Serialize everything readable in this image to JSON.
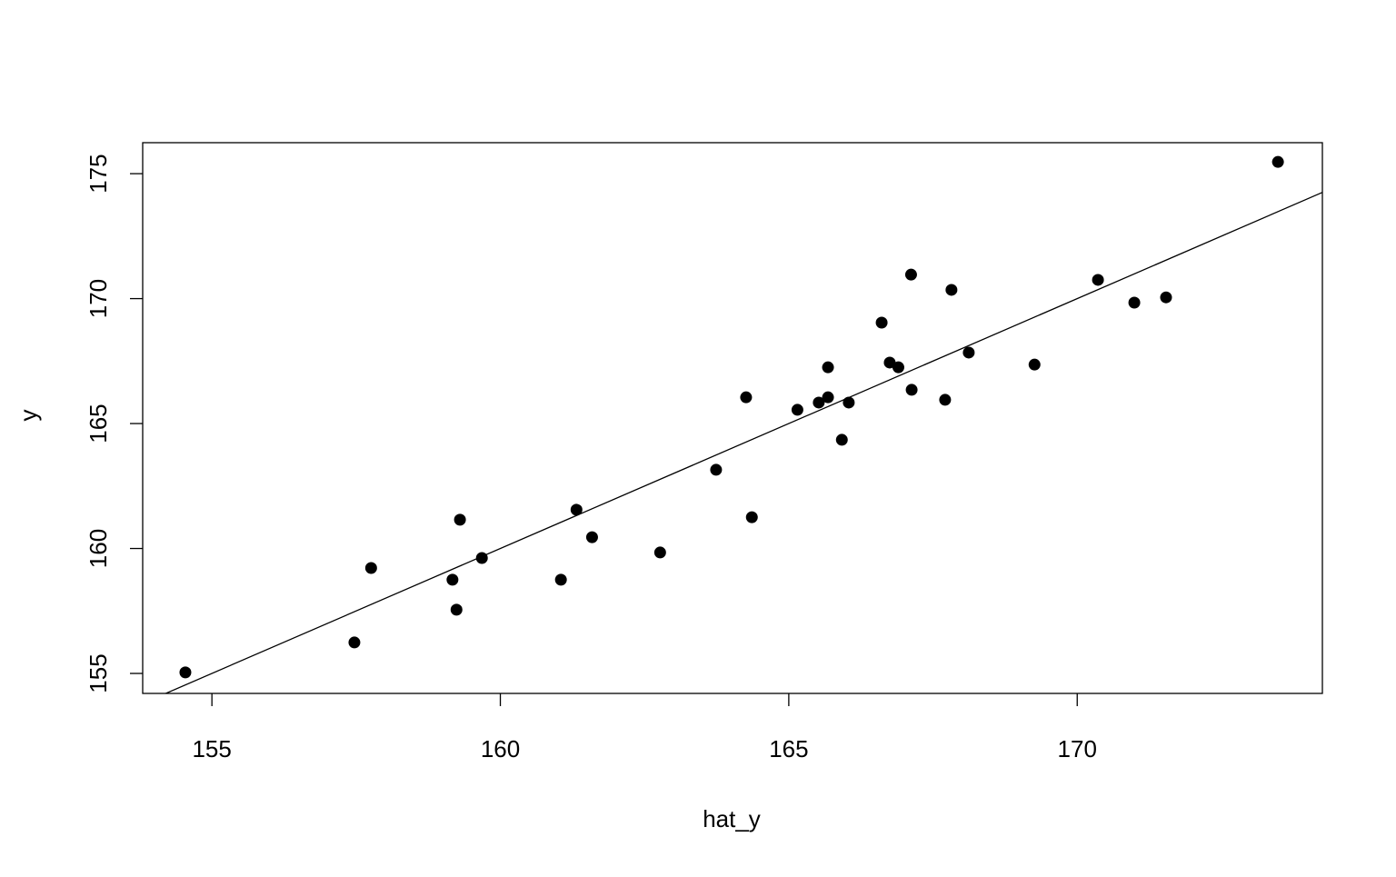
{
  "chart_data": {
    "type": "scatter",
    "xlabel": "hat_y",
    "ylabel": "y",
    "color": "#000000",
    "x": [
      154.54,
      157.47,
      157.76,
      159.17,
      159.24,
      159.3,
      159.68,
      161.05,
      161.32,
      161.59,
      162.77,
      163.74,
      164.26,
      164.36,
      165.15,
      165.52,
      165.68,
      165.68,
      165.92,
      166.04,
      166.61,
      166.75,
      166.9,
      167.12,
      167.13,
      167.71,
      167.82,
      168.12,
      169.26,
      170.36,
      170.99,
      171.54,
      173.48
    ],
    "y": [
      155.04,
      156.24,
      159.22,
      158.75,
      157.55,
      161.15,
      159.62,
      158.75,
      161.55,
      160.45,
      159.84,
      163.15,
      166.05,
      161.25,
      165.55,
      165.84,
      166.05,
      167.25,
      164.35,
      165.84,
      169.04,
      167.44,
      167.25,
      170.96,
      166.35,
      165.95,
      170.35,
      167.84,
      167.36,
      170.75,
      169.84,
      170.05,
      175.47
    ],
    "fit_line": {
      "intercept": 0,
      "slope": 1
    },
    "xlim": [
      153.8,
      174.25
    ],
    "ylim": [
      154.2,
      176.24
    ],
    "xticks": [
      155,
      160,
      165,
      170
    ],
    "yticks": [
      155,
      160,
      165,
      170,
      175
    ]
  }
}
